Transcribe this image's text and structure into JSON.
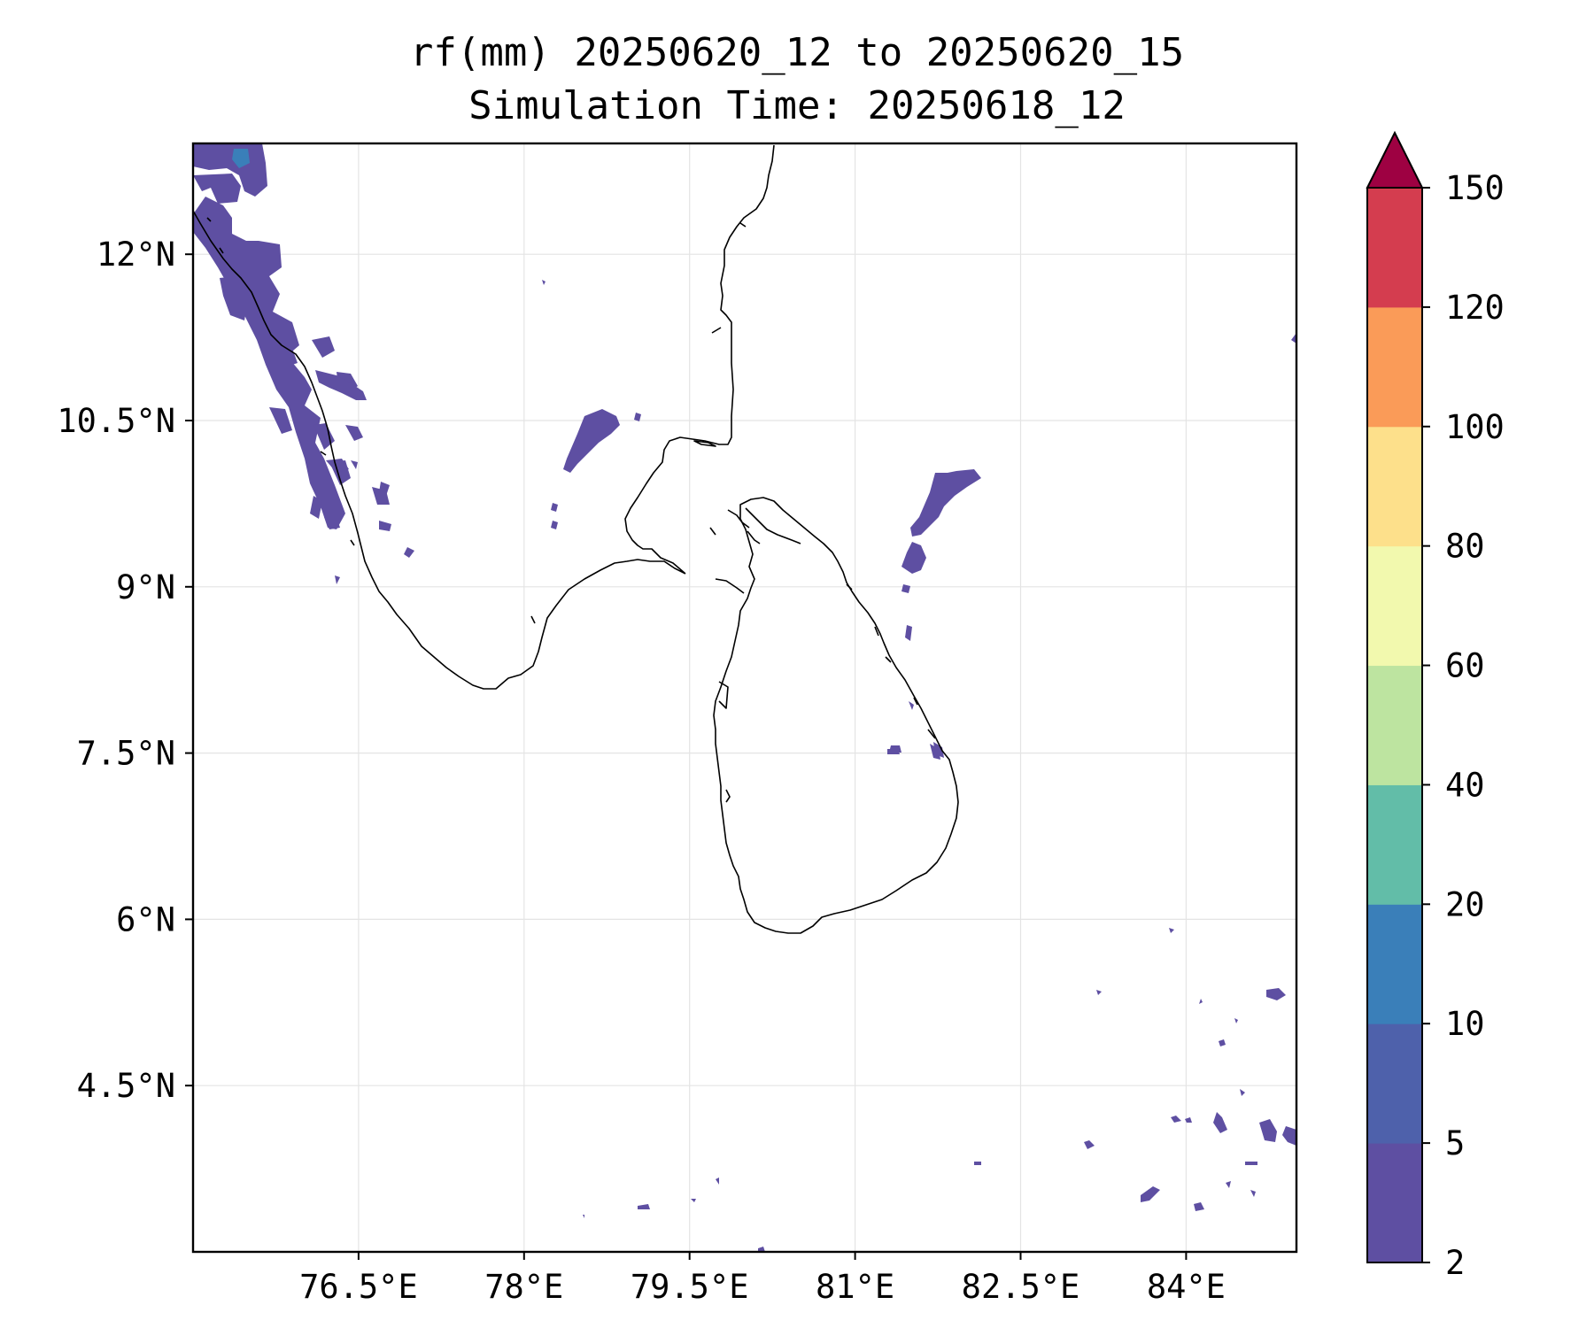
{
  "title": {
    "line1": "rf(mm) 20250620_12 to 20250620_15",
    "line2": "Simulation Time: 20250618_12"
  },
  "map": {
    "lon_range": [
      75.0,
      85.0
    ],
    "lat_range": [
      3.0,
      13.0
    ],
    "x_ticks": [
      {
        "value": 76.5,
        "label": "76.5°E"
      },
      {
        "value": 78.0,
        "label": "78°E"
      },
      {
        "value": 79.5,
        "label": "79.5°E"
      },
      {
        "value": 81.0,
        "label": "81°E"
      },
      {
        "value": 82.5,
        "label": "82.5°E"
      },
      {
        "value": 84.0,
        "label": "84°E"
      }
    ],
    "y_ticks": [
      {
        "value": 12.0,
        "label": "12°N"
      },
      {
        "value": 10.5,
        "label": "10.5°N"
      },
      {
        "value": 9.0,
        "label": "9°N"
      },
      {
        "value": 7.5,
        "label": "7.5°N"
      },
      {
        "value": 6.0,
        "label": "6°N"
      },
      {
        "value": 4.5,
        "label": "4.5°N"
      }
    ],
    "grid": true,
    "coastline_color": "#000000",
    "rain_color": "#5e4fa2",
    "rain_color_light": "#3288bd"
  },
  "colorbar": {
    "levels": [
      {
        "label": "2",
        "color": "#5e4fa2"
      },
      {
        "label": "5",
        "color": "#4e61ab"
      },
      {
        "label": "10",
        "color": "#3a7fb9"
      },
      {
        "label": "20",
        "color": "#62bda8"
      },
      {
        "label": "40",
        "color": "#bde4a0"
      },
      {
        "label": "60",
        "color": "#f2f9ae"
      },
      {
        "label": "80",
        "color": "#fde08b"
      },
      {
        "label": "100",
        "color": "#fa9b58"
      },
      {
        "label": "120",
        "color": "#d43d4f"
      },
      {
        "label": "150",
        "color": "#9e0142"
      }
    ],
    "extend": "max"
  }
}
